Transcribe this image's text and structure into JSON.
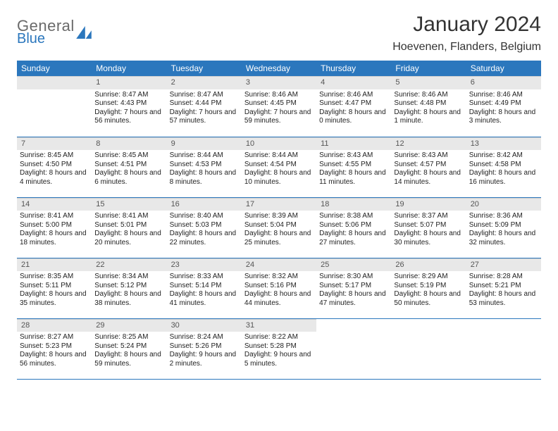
{
  "logo": {
    "line1": "General",
    "line2": "Blue"
  },
  "header": {
    "month": "January 2024",
    "location": "Hoevenen, Flanders, Belgium"
  },
  "colors": {
    "accent": "#2b77bd",
    "header_bg": "#e8e8e8",
    "text": "#222222",
    "page_bg": "#ffffff"
  },
  "dayNames": [
    "Sunday",
    "Monday",
    "Tuesday",
    "Wednesday",
    "Thursday",
    "Friday",
    "Saturday"
  ],
  "weeks": [
    [
      {
        "n": "",
        "sunrise": "",
        "sunset": "",
        "daylight": "",
        "empty": true
      },
      {
        "n": "1",
        "sunrise": "Sunrise: 8:47 AM",
        "sunset": "Sunset: 4:43 PM",
        "daylight": "Daylight: 7 hours and 56 minutes."
      },
      {
        "n": "2",
        "sunrise": "Sunrise: 8:47 AM",
        "sunset": "Sunset: 4:44 PM",
        "daylight": "Daylight: 7 hours and 57 minutes."
      },
      {
        "n": "3",
        "sunrise": "Sunrise: 8:46 AM",
        "sunset": "Sunset: 4:45 PM",
        "daylight": "Daylight: 7 hours and 59 minutes."
      },
      {
        "n": "4",
        "sunrise": "Sunrise: 8:46 AM",
        "sunset": "Sunset: 4:47 PM",
        "daylight": "Daylight: 8 hours and 0 minutes."
      },
      {
        "n": "5",
        "sunrise": "Sunrise: 8:46 AM",
        "sunset": "Sunset: 4:48 PM",
        "daylight": "Daylight: 8 hours and 1 minute."
      },
      {
        "n": "6",
        "sunrise": "Sunrise: 8:46 AM",
        "sunset": "Sunset: 4:49 PM",
        "daylight": "Daylight: 8 hours and 3 minutes."
      }
    ],
    [
      {
        "n": "7",
        "sunrise": "Sunrise: 8:45 AM",
        "sunset": "Sunset: 4:50 PM",
        "daylight": "Daylight: 8 hours and 4 minutes."
      },
      {
        "n": "8",
        "sunrise": "Sunrise: 8:45 AM",
        "sunset": "Sunset: 4:51 PM",
        "daylight": "Daylight: 8 hours and 6 minutes."
      },
      {
        "n": "9",
        "sunrise": "Sunrise: 8:44 AM",
        "sunset": "Sunset: 4:53 PM",
        "daylight": "Daylight: 8 hours and 8 minutes."
      },
      {
        "n": "10",
        "sunrise": "Sunrise: 8:44 AM",
        "sunset": "Sunset: 4:54 PM",
        "daylight": "Daylight: 8 hours and 10 minutes."
      },
      {
        "n": "11",
        "sunrise": "Sunrise: 8:43 AM",
        "sunset": "Sunset: 4:55 PM",
        "daylight": "Daylight: 8 hours and 11 minutes."
      },
      {
        "n": "12",
        "sunrise": "Sunrise: 8:43 AM",
        "sunset": "Sunset: 4:57 PM",
        "daylight": "Daylight: 8 hours and 14 minutes."
      },
      {
        "n": "13",
        "sunrise": "Sunrise: 8:42 AM",
        "sunset": "Sunset: 4:58 PM",
        "daylight": "Daylight: 8 hours and 16 minutes."
      }
    ],
    [
      {
        "n": "14",
        "sunrise": "Sunrise: 8:41 AM",
        "sunset": "Sunset: 5:00 PM",
        "daylight": "Daylight: 8 hours and 18 minutes."
      },
      {
        "n": "15",
        "sunrise": "Sunrise: 8:41 AM",
        "sunset": "Sunset: 5:01 PM",
        "daylight": "Daylight: 8 hours and 20 minutes."
      },
      {
        "n": "16",
        "sunrise": "Sunrise: 8:40 AM",
        "sunset": "Sunset: 5:03 PM",
        "daylight": "Daylight: 8 hours and 22 minutes."
      },
      {
        "n": "17",
        "sunrise": "Sunrise: 8:39 AM",
        "sunset": "Sunset: 5:04 PM",
        "daylight": "Daylight: 8 hours and 25 minutes."
      },
      {
        "n": "18",
        "sunrise": "Sunrise: 8:38 AM",
        "sunset": "Sunset: 5:06 PM",
        "daylight": "Daylight: 8 hours and 27 minutes."
      },
      {
        "n": "19",
        "sunrise": "Sunrise: 8:37 AM",
        "sunset": "Sunset: 5:07 PM",
        "daylight": "Daylight: 8 hours and 30 minutes."
      },
      {
        "n": "20",
        "sunrise": "Sunrise: 8:36 AM",
        "sunset": "Sunset: 5:09 PM",
        "daylight": "Daylight: 8 hours and 32 minutes."
      }
    ],
    [
      {
        "n": "21",
        "sunrise": "Sunrise: 8:35 AM",
        "sunset": "Sunset: 5:11 PM",
        "daylight": "Daylight: 8 hours and 35 minutes."
      },
      {
        "n": "22",
        "sunrise": "Sunrise: 8:34 AM",
        "sunset": "Sunset: 5:12 PM",
        "daylight": "Daylight: 8 hours and 38 minutes."
      },
      {
        "n": "23",
        "sunrise": "Sunrise: 8:33 AM",
        "sunset": "Sunset: 5:14 PM",
        "daylight": "Daylight: 8 hours and 41 minutes."
      },
      {
        "n": "24",
        "sunrise": "Sunrise: 8:32 AM",
        "sunset": "Sunset: 5:16 PM",
        "daylight": "Daylight: 8 hours and 44 minutes."
      },
      {
        "n": "25",
        "sunrise": "Sunrise: 8:30 AM",
        "sunset": "Sunset: 5:17 PM",
        "daylight": "Daylight: 8 hours and 47 minutes."
      },
      {
        "n": "26",
        "sunrise": "Sunrise: 8:29 AM",
        "sunset": "Sunset: 5:19 PM",
        "daylight": "Daylight: 8 hours and 50 minutes."
      },
      {
        "n": "27",
        "sunrise": "Sunrise: 8:28 AM",
        "sunset": "Sunset: 5:21 PM",
        "daylight": "Daylight: 8 hours and 53 minutes."
      }
    ],
    [
      {
        "n": "28",
        "sunrise": "Sunrise: 8:27 AM",
        "sunset": "Sunset: 5:23 PM",
        "daylight": "Daylight: 8 hours and 56 minutes."
      },
      {
        "n": "29",
        "sunrise": "Sunrise: 8:25 AM",
        "sunset": "Sunset: 5:24 PM",
        "daylight": "Daylight: 8 hours and 59 minutes."
      },
      {
        "n": "30",
        "sunrise": "Sunrise: 8:24 AM",
        "sunset": "Sunset: 5:26 PM",
        "daylight": "Daylight: 9 hours and 2 minutes."
      },
      {
        "n": "31",
        "sunrise": "Sunrise: 8:22 AM",
        "sunset": "Sunset: 5:28 PM",
        "daylight": "Daylight: 9 hours and 5 minutes."
      },
      {
        "n": "",
        "sunrise": "",
        "sunset": "",
        "daylight": "",
        "blank": true
      },
      {
        "n": "",
        "sunrise": "",
        "sunset": "",
        "daylight": "",
        "blank": true
      },
      {
        "n": "",
        "sunrise": "",
        "sunset": "",
        "daylight": "",
        "blank": true
      }
    ]
  ]
}
